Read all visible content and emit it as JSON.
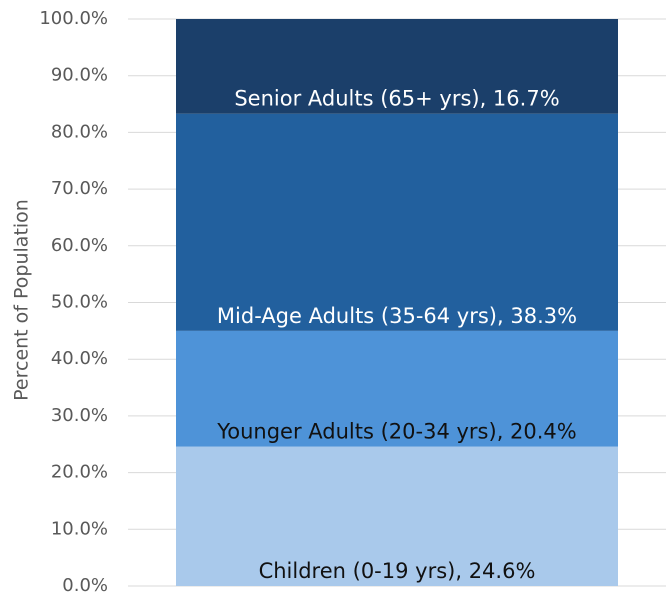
{
  "chart_data": {
    "type": "stacked-bar",
    "ylabel": "Percent of Population",
    "categories": [
      null
    ],
    "series": [
      {
        "color": "#a9c9eb",
        "label_color": "#111111",
        "values": [
          24.6
        ],
        "value_labels": [
          "Children (0-19 yrs), 24.6%"
        ]
      },
      {
        "color": "#4e93d8",
        "label_color": "#111111",
        "values": [
          20.4
        ],
        "value_labels": [
          "Younger Adults (20-34 yrs), 20.4%"
        ]
      },
      {
        "color": "#22609e",
        "label_color": "#ffffff",
        "values": [
          38.3
        ],
        "value_labels": [
          "Mid-Age Adults (35-64 yrs), 38.3%"
        ]
      },
      {
        "color": "#1b3f6a",
        "label_color": "#ffffff",
        "values": [
          16.7
        ],
        "value_labels": [
          "Senior Adults (65+ yrs), 16.7%"
        ]
      }
    ],
    "ylim": [
      0,
      100
    ],
    "yticks": [
      {
        "value": 0,
        "label": "0.0%"
      },
      {
        "value": 10,
        "label": "10.0%"
      },
      {
        "value": 20,
        "label": "20.0%"
      },
      {
        "value": 30,
        "label": "30.0%"
      },
      {
        "value": 40,
        "label": "40.0%"
      },
      {
        "value": 50,
        "label": "50.0%"
      },
      {
        "value": 60,
        "label": "60.0%"
      },
      {
        "value": 70,
        "label": "70.0%"
      },
      {
        "value": 80,
        "label": "80.0%"
      },
      {
        "value": 90,
        "label": "90.0%"
      },
      {
        "value": 100,
        "label": "100.0%"
      }
    ],
    "grid": true
  }
}
